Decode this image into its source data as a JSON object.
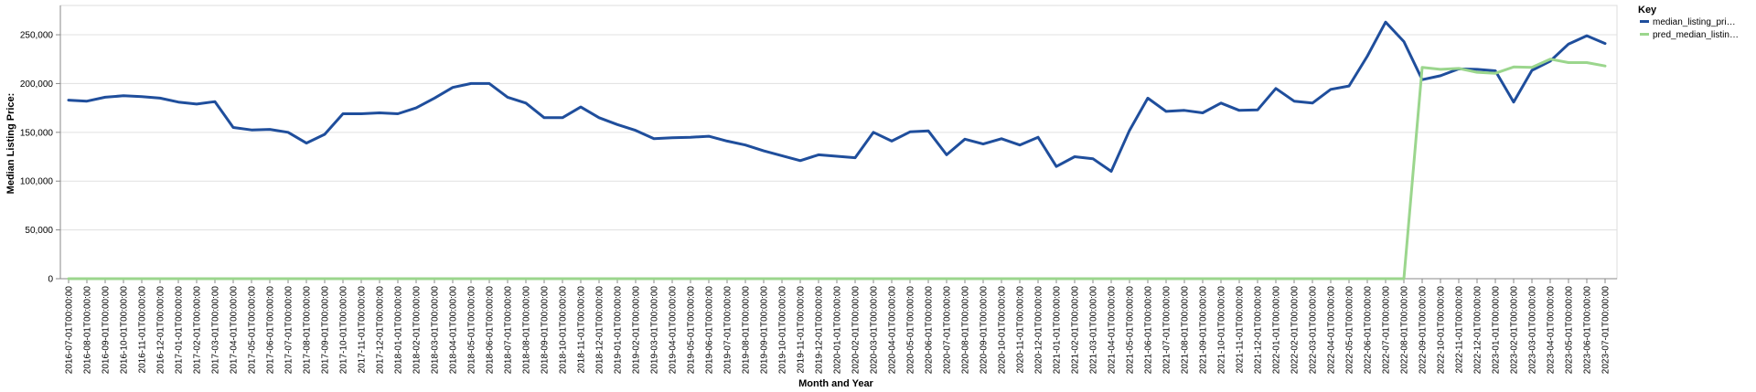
{
  "chart_data": {
    "type": "line",
    "xlabel": "Month and Year",
    "ylabel": "Median Listing Price:",
    "ylim": [
      0,
      280000
    ],
    "y_ticks": [
      0,
      50000,
      100000,
      150000,
      200000,
      250000
    ],
    "y_tick_labels": [
      "0",
      "50,000",
      "100,000",
      "150,000",
      "200,000",
      "250,000"
    ],
    "grid": true,
    "legend": {
      "title": "Key",
      "placement": "right"
    },
    "x": [
      "2016-07-01T00:00:00",
      "2016-08-01T00:00:00",
      "2016-09-01T00:00:00",
      "2016-10-01T00:00:00",
      "2016-11-01T00:00:00",
      "2016-12-01T00:00:00",
      "2017-01-01T00:00:00",
      "2017-02-01T00:00:00",
      "2017-03-01T00:00:00",
      "2017-04-01T00:00:00",
      "2017-05-01T00:00:00",
      "2017-06-01T00:00:00",
      "2017-07-01T00:00:00",
      "2017-08-01T00:00:00",
      "2017-09-01T00:00:00",
      "2017-10-01T00:00:00",
      "2017-11-01T00:00:00",
      "2017-12-01T00:00:00",
      "2018-01-01T00:00:00",
      "2018-02-01T00:00:00",
      "2018-03-01T00:00:00",
      "2018-04-01T00:00:00",
      "2018-05-01T00:00:00",
      "2018-06-01T00:00:00",
      "2018-07-01T00:00:00",
      "2018-08-01T00:00:00",
      "2018-09-01T00:00:00",
      "2018-10-01T00:00:00",
      "2018-11-01T00:00:00",
      "2018-12-01T00:00:00",
      "2019-01-01T00:00:00",
      "2019-02-01T00:00:00",
      "2019-03-01T00:00:00",
      "2019-04-01T00:00:00",
      "2019-05-01T00:00:00",
      "2019-06-01T00:00:00",
      "2019-07-01T00:00:00",
      "2019-08-01T00:00:00",
      "2019-09-01T00:00:00",
      "2019-10-01T00:00:00",
      "2019-11-01T00:00:00",
      "2019-12-01T00:00:00",
      "2020-01-01T00:00:00",
      "2020-02-01T00:00:00",
      "2020-03-01T00:00:00",
      "2020-04-01T00:00:00",
      "2020-05-01T00:00:00",
      "2020-06-01T00:00:00",
      "2020-07-01T00:00:00",
      "2020-08-01T00:00:00",
      "2020-09-01T00:00:00",
      "2020-10-01T00:00:00",
      "2020-11-01T00:00:00",
      "2020-12-01T00:00:00",
      "2021-01-01T00:00:00",
      "2021-02-01T00:00:00",
      "2021-03-01T00:00:00",
      "2021-04-01T00:00:00",
      "2021-05-01T00:00:00",
      "2021-06-01T00:00:00",
      "2021-07-01T00:00:00",
      "2021-08-01T00:00:00",
      "2021-09-01T00:00:00",
      "2021-10-01T00:00:00",
      "2021-11-01T00:00:00",
      "2021-12-01T00:00:00",
      "2022-01-01T00:00:00",
      "2022-02-01T00:00:00",
      "2022-03-01T00:00:00",
      "2022-04-01T00:00:00",
      "2022-05-01T00:00:00",
      "2022-06-01T00:00:00",
      "2022-07-01T00:00:00",
      "2022-08-01T00:00:00",
      "2022-09-01T00:00:00",
      "2022-10-01T00:00:00",
      "2022-11-01T00:00:00",
      "2022-12-01T00:00:00",
      "2023-01-01T00:00:00",
      "2023-02-01T00:00:00",
      "2023-03-01T00:00:00",
      "2023-04-01T00:00:00",
      "2023-05-01T00:00:00",
      "2023-06-01T00:00:00",
      "2023-07-01T00:00:00"
    ],
    "series": [
      {
        "name": "median_listing_pri…",
        "color": "#1f4e9c",
        "values": [
          183000,
          182000,
          186000,
          187500,
          186500,
          185000,
          181000,
          179000,
          181500,
          155000,
          152500,
          153000,
          150000,
          139000,
          148000,
          169000,
          169000,
          170000,
          169000,
          175000,
          185000,
          196000,
          200000,
          200000,
          186000,
          180000,
          165000,
          165000,
          176000,
          165000,
          158000,
          152000,
          143500,
          144500,
          145000,
          146000,
          141000,
          137000,
          131000,
          126000,
          121000,
          127000,
          125500,
          124000,
          150000,
          141000,
          150500,
          151500,
          127000,
          143000,
          138000,
          143500,
          137000,
          145000,
          115000,
          125000,
          123000,
          110000,
          152000,
          185000,
          171500,
          172500,
          170000,
          180000,
          172500,
          173000,
          195000,
          182000,
          180000,
          194000,
          197500,
          228000,
          263000,
          243000,
          204000,
          208000,
          215000,
          214500,
          213000,
          181000,
          213500,
          223000,
          240500,
          249000,
          241000
        ]
      },
      {
        "name": "pred_median_listin…",
        "color": "#9bd68d",
        "values": [
          0,
          0,
          0,
          0,
          0,
          0,
          0,
          0,
          0,
          0,
          0,
          0,
          0,
          0,
          0,
          0,
          0,
          0,
          0,
          0,
          0,
          0,
          0,
          0,
          0,
          0,
          0,
          0,
          0,
          0,
          0,
          0,
          0,
          0,
          0,
          0,
          0,
          0,
          0,
          0,
          0,
          0,
          0,
          0,
          0,
          0,
          0,
          0,
          0,
          0,
          0,
          0,
          0,
          0,
          0,
          0,
          0,
          0,
          0,
          0,
          0,
          0,
          0,
          0,
          0,
          0,
          0,
          0,
          0,
          0,
          0,
          0,
          0,
          0,
          216500,
          214500,
          215500,
          211500,
          210500,
          217000,
          216500,
          225000,
          221500,
          221500,
          218000
        ]
      }
    ]
  }
}
